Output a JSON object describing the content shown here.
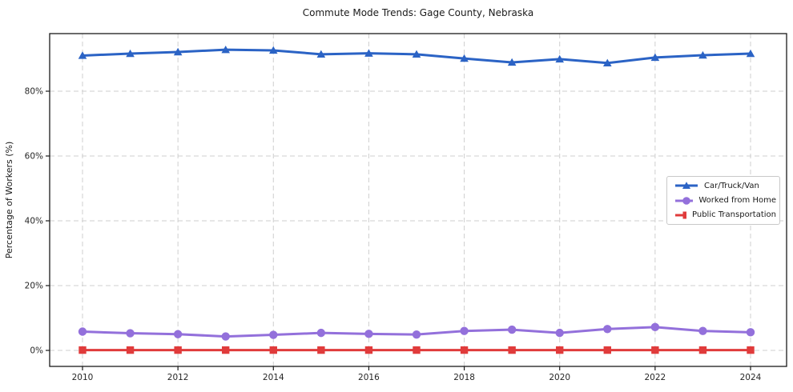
{
  "chart_data": {
    "type": "line",
    "title": "Commute Mode Trends: Gage County, Nebraska",
    "xlabel": "",
    "ylabel": "Percentage of Workers (%)",
    "x": [
      2010,
      2011,
      2012,
      2013,
      2014,
      2015,
      2016,
      2017,
      2018,
      2019,
      2020,
      2021,
      2022,
      2023,
      2024
    ],
    "xtick_values": [
      2010,
      2012,
      2014,
      2016,
      2018,
      2020,
      2022,
      2024
    ],
    "xtick_labels": [
      "2010",
      "2012",
      "2014",
      "2016",
      "2018",
      "2020",
      "2022",
      "2024"
    ],
    "ytick_values": [
      0,
      20,
      40,
      60,
      80
    ],
    "ytick_labels": [
      "0%",
      "20%",
      "40%",
      "60%",
      "80%"
    ],
    "ylim": [
      -5,
      98
    ],
    "grid": true,
    "grid_style": "dashed",
    "legend_position": "center-right",
    "series": [
      {
        "name": "Car/Truck/Van",
        "marker": "triangle",
        "color": "#2b63c5",
        "values": [
          91.0,
          91.6,
          92.1,
          92.8,
          92.6,
          91.4,
          91.7,
          91.4,
          90.1,
          88.9,
          89.9,
          88.7,
          90.4,
          91.1,
          91.6
        ]
      },
      {
        "name": "Worked from Home",
        "marker": "circle",
        "color": "#9370db",
        "values": [
          5.8,
          5.3,
          5.0,
          4.3,
          4.8,
          5.4,
          5.1,
          4.9,
          6.0,
          6.4,
          5.4,
          6.6,
          7.2,
          6.0,
          5.6
        ]
      },
      {
        "name": "Public Transportation",
        "marker": "square",
        "color": "#e03b3b",
        "values": [
          0.1,
          0.1,
          0.1,
          0.1,
          0.1,
          0.1,
          0.1,
          0.1,
          0.1,
          0.1,
          0.1,
          0.1,
          0.1,
          0.1,
          0.1
        ]
      }
    ]
  }
}
